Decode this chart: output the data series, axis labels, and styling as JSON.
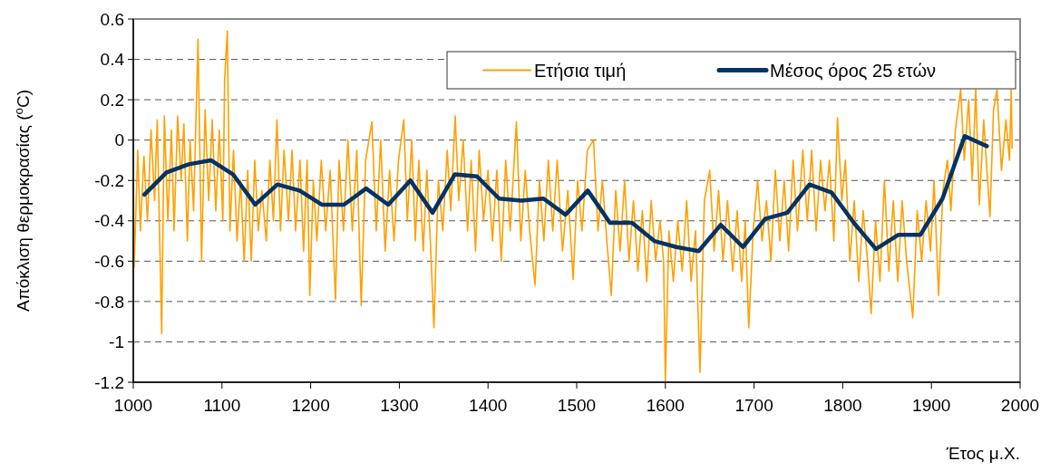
{
  "chart_data": {
    "type": "line",
    "ylabel": "Απόκλιση θερμοκρασίας ($^{o}$C)",
    "xlabel": "Έτος μ.Χ.",
    "xlim": [
      1000,
      2000
    ],
    "xticks": [
      1000,
      1100,
      1200,
      1300,
      1400,
      1500,
      1600,
      1700,
      1800,
      1900,
      2000
    ],
    "ylim": [
      -1.2,
      0.6
    ],
    "yticks": [
      -1.2,
      -1,
      -0.8,
      -0.6,
      -0.4,
      -0.2,
      0,
      0.2,
      0.4,
      0.6
    ],
    "grid": "y",
    "legend": "top right",
    "marker": "none",
    "line_style": "solid",
    "series": [
      {
        "name": "Ετήσια τιμή",
        "color": "#ffa000",
        "x": [
          1000,
          1001,
          1005,
          1008,
          1012,
          1016,
          1020,
          1024,
          1027,
          1032,
          1035,
          1039,
          1043,
          1046,
          1050,
          1054,
          1057,
          1061,
          1064,
          1068,
          1073,
          1077,
          1081,
          1085,
          1089,
          1093,
          1097,
          1101,
          1103,
          1106,
          1109,
          1113,
          1117,
          1121,
          1125,
          1129,
          1133,
          1137,
          1141,
          1145,
          1150,
          1154,
          1158,
          1162,
          1166,
          1170,
          1175,
          1179,
          1183,
          1188,
          1192,
          1196,
          1199,
          1203,
          1207,
          1212,
          1217,
          1222,
          1228,
          1232,
          1237,
          1242,
          1247,
          1252,
          1257,
          1262,
          1269,
          1274,
          1279,
          1284,
          1289,
          1294,
          1299,
          1305,
          1309,
          1314,
          1318,
          1322,
          1327,
          1331,
          1335,
          1339,
          1344,
          1349,
          1354,
          1358,
          1363,
          1367,
          1372,
          1377,
          1381,
          1386,
          1390,
          1395,
          1400,
          1405,
          1410,
          1415,
          1420,
          1425,
          1432,
          1437,
          1442,
          1447,
          1453,
          1458,
          1463,
          1468,
          1473,
          1478,
          1484,
          1490,
          1496,
          1501,
          1506,
          1512,
          1519,
          1524,
          1529,
          1534,
          1539,
          1544,
          1549,
          1554,
          1559,
          1564,
          1569,
          1574,
          1579,
          1584,
          1589,
          1594,
          1598,
          1600,
          1604,
          1609,
          1614,
          1619,
          1624,
          1629,
          1634,
          1639,
          1644,
          1650,
          1655,
          1660,
          1665,
          1670,
          1676,
          1681,
          1686,
          1690,
          1694,
          1699,
          1704,
          1709,
          1714,
          1719,
          1724,
          1729,
          1734,
          1739,
          1744,
          1749,
          1755,
          1760,
          1765,
          1770,
          1775,
          1780,
          1785,
          1790,
          1794,
          1799,
          1803,
          1808,
          1813,
          1818,
          1823,
          1828,
          1832,
          1837,
          1842,
          1847,
          1852,
          1857,
          1862,
          1867,
          1872,
          1879,
          1884,
          1889,
          1894,
          1899,
          1903,
          1908,
          1913,
          1918,
          1922,
          1927,
          1933,
          1937,
          1942,
          1946,
          1950,
          1954,
          1959,
          1966,
          1970,
          1974,
          1979,
          1984,
          1988,
          1990,
          1991
        ],
        "values": [
          -0.15,
          -0.63,
          -0.05,
          -0.45,
          -0.08,
          -0.4,
          0.05,
          -0.3,
          0.1,
          -0.96,
          0.12,
          -0.4,
          0.05,
          -0.45,
          0.12,
          -0.2,
          0.08,
          -0.5,
          0,
          -0.35,
          0.5,
          -0.6,
          0.15,
          -0.3,
          0.1,
          -0.35,
          0.05,
          -0.4,
          0.3,
          0.54,
          -0.45,
          -0.05,
          -0.5,
          -0.2,
          -0.6,
          -0.15,
          -0.6,
          -0.1,
          -0.45,
          -0.25,
          -0.5,
          -0.1,
          -0.4,
          0.1,
          -0.45,
          -0.05,
          -0.4,
          -0.05,
          -0.45,
          -0.1,
          -0.55,
          -0.1,
          -0.77,
          -0.2,
          -0.5,
          -0.1,
          -0.45,
          -0.15,
          -0.79,
          -0.1,
          -0.45,
          0,
          -0.45,
          -0.05,
          -0.82,
          -0.1,
          0.09,
          -0.45,
          0,
          -0.55,
          -0.15,
          -0.5,
          -0.1,
          0.1,
          -0.4,
          0,
          -0.5,
          -0.1,
          -0.55,
          -0.15,
          -0.5,
          -0.93,
          -0.2,
          -0.45,
          -0.05,
          -0.35,
          0.12,
          -0.3,
          0,
          -0.45,
          -0.1,
          -0.55,
          -0.05,
          -0.4,
          -0.15,
          -0.5,
          -0.15,
          -0.6,
          -0.1,
          -0.45,
          0.09,
          -0.5,
          -0.15,
          -0.45,
          -0.72,
          -0.2,
          -0.5,
          -0.1,
          -0.45,
          -0.1,
          -0.55,
          -0.25,
          -0.69,
          -0.2,
          -0.45,
          -0.05,
          0,
          -0.45,
          -0.2,
          -0.5,
          -0.77,
          -0.25,
          -0.55,
          -0.2,
          -0.6,
          -0.3,
          -0.65,
          -0.35,
          -0.7,
          -0.3,
          -0.6,
          -0.4,
          -0.6,
          -1.2,
          -0.45,
          -0.7,
          -0.4,
          -0.65,
          -0.3,
          -0.7,
          -0.45,
          -1.15,
          -0.3,
          -0.15,
          -0.55,
          -0.25,
          -0.6,
          -0.3,
          -0.65,
          -0.35,
          -0.7,
          -0.4,
          -0.93,
          -0.45,
          -0.2,
          -0.5,
          -0.3,
          -0.6,
          -0.15,
          -0.5,
          -0.2,
          -0.55,
          -0.1,
          -0.45,
          -0.05,
          -0.4,
          -0.05,
          -0.45,
          -0.1,
          -0.35,
          -0.1,
          -0.5,
          0.11,
          -0.3,
          -0.1,
          -0.6,
          -0.3,
          -0.7,
          -0.35,
          -0.6,
          -0.86,
          -0.4,
          -0.7,
          -0.2,
          -0.65,
          -0.3,
          -0.7,
          -0.3,
          -0.6,
          -0.88,
          -0.35,
          -0.6,
          -0.3,
          -0.55,
          -0.2,
          -0.77,
          -0.25,
          -0.1,
          -0.35,
          0.05,
          0.25,
          -0.1,
          0.2,
          -0.2,
          0.25,
          -0.32,
          0.1,
          -0.38,
          0.15,
          0.25,
          -0.15,
          0.1,
          -0.1,
          0.25,
          -0.04
        ]
      },
      {
        "name": "Μέσος όρος 25 ετών",
        "color": "#003366",
        "x": [
          1012.5,
          1037.5,
          1062.5,
          1087.5,
          1112.5,
          1137.5,
          1162.5,
          1187.5,
          1212.5,
          1237.5,
          1262.5,
          1287.5,
          1312.5,
          1337.5,
          1362.5,
          1387.5,
          1412.5,
          1437.5,
          1462.5,
          1487.5,
          1512.5,
          1537.5,
          1562.5,
          1587.5,
          1612.5,
          1637.5,
          1662.5,
          1687.5,
          1712.5,
          1737.5,
          1762.5,
          1787.5,
          1812.5,
          1837.5,
          1862.5,
          1887.5,
          1912.5,
          1937.5,
          1962.5
        ],
        "values": [
          -0.27,
          -0.16,
          -0.12,
          -0.1,
          -0.17,
          -0.32,
          -0.22,
          -0.25,
          -0.32,
          -0.32,
          -0.24,
          -0.32,
          -0.2,
          -0.36,
          -0.17,
          -0.18,
          -0.29,
          -0.3,
          -0.29,
          -0.37,
          -0.25,
          -0.41,
          -0.41,
          -0.5,
          -0.53,
          -0.55,
          -0.42,
          -0.53,
          -0.39,
          -0.36,
          -0.22,
          -0.26,
          -0.41,
          -0.54,
          -0.47,
          -0.47,
          -0.29,
          0.02,
          -0.03
        ]
      }
    ]
  }
}
